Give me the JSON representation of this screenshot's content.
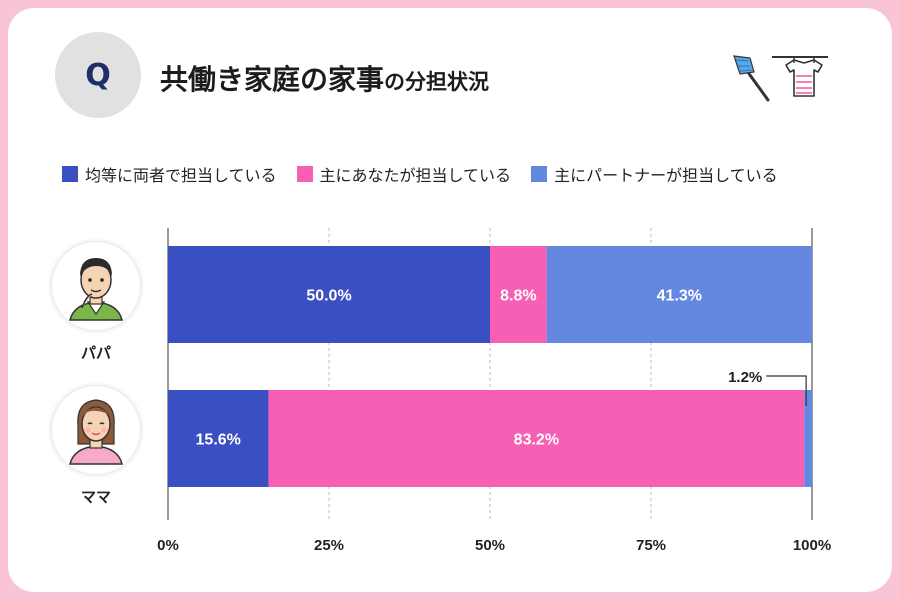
{
  "header": {
    "badge": "Q",
    "title_main": "共働き家庭の家事",
    "title_sub": "の分担状況"
  },
  "decoration": {
    "icons": [
      "duster-icon",
      "tshirt-on-hanger-icon"
    ]
  },
  "colors": {
    "equal": "#3a4fc1",
    "self": "#f55fb4",
    "partner": "#6488e0",
    "grid": "#bdbdbd",
    "text": "#222222"
  },
  "chart_data": {
    "type": "bar",
    "orientation": "horizontal",
    "stacked": true,
    "percent": true,
    "categories": [
      "パパ",
      "ママ"
    ],
    "series": [
      {
        "name": "均等に両者で担当している",
        "values": [
          50.0,
          15.6
        ],
        "labels": [
          "50.0%",
          "15.6%"
        ]
      },
      {
        "name": "主にあなたが担当している",
        "values": [
          8.8,
          83.2
        ],
        "labels": [
          "8.8%",
          "83.2%"
        ]
      },
      {
        "name": "主にパートナーが担当している",
        "values": [
          41.3,
          1.2
        ],
        "labels": [
          "41.3%",
          "1.2%"
        ]
      }
    ],
    "xlim": [
      0,
      100
    ],
    "x_ticks": [
      "0%",
      "25%",
      "50%",
      "75%",
      "100%"
    ],
    "grid": true,
    "legend_placement": "top"
  }
}
